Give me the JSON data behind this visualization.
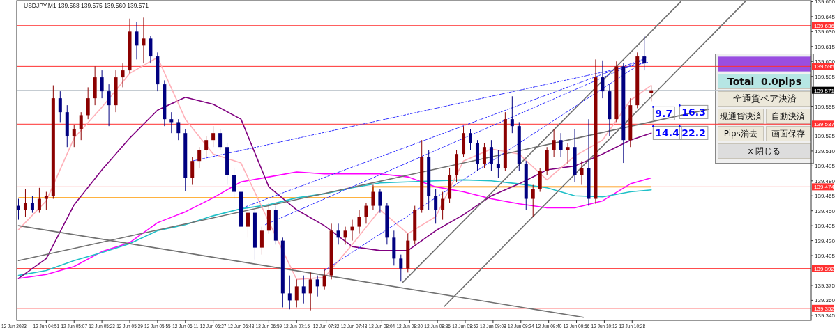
{
  "chart_data": [
    {
      "type": "candlestick",
      "title": "USDJPY,M1  139.568 139.575 139.560 139.571",
      "x": [
        "2023-06-12T04:35",
        "2023-06-12T04:39",
        "2023-06-12T04:43",
        "2023-06-12T04:47",
        "2023-06-12T04:51",
        "2023-06-12T04:55",
        "2023-06-12T04:59",
        "2023-06-12T05:03",
        "2023-06-12T05:07",
        "2023-06-12T05:11",
        "2023-06-12T05:15",
        "2023-06-12T05:19",
        "2023-06-12T05:23",
        "2023-06-12T05:27",
        "2023-06-12T05:31",
        "2023-06-12T05:35",
        "2023-06-12T05:39",
        "2023-06-12T05:43",
        "2023-06-12T05:47",
        "2023-06-12T05:51",
        "2023-06-12T05:55",
        "2023-06-12T05:59",
        "2023-06-12T06:03",
        "2023-06-12T06:07",
        "2023-06-12T06:11",
        "2023-06-12T06:15",
        "2023-06-12T06:19",
        "2023-06-12T06:23",
        "2023-06-12T06:27",
        "2023-06-12T06:31",
        "2023-06-12T06:35",
        "2023-06-12T06:39",
        "2023-06-12T06:43",
        "2023-06-12T06:47",
        "2023-06-12T06:51",
        "2023-06-12T06:55",
        "2023-06-12T06:59",
        "2023-06-12T07:03",
        "2023-06-12T07:07",
        "2023-06-12T07:11",
        "2023-06-12T07:15",
        "2023-06-12T07:19",
        "2023-06-12T07:23",
        "2023-06-12T07:27",
        "2023-06-12T07:31",
        "2023-06-12T07:35",
        "2023-06-12T07:39",
        "2023-06-12T07:43",
        "2023-06-12T07:47",
        "2023-06-12T07:51",
        "2023-06-12T07:55",
        "2023-06-12T07:59",
        "2023-06-12T08:03",
        "2023-06-12T08:07",
        "2023-06-12T08:11",
        "2023-06-12T08:15",
        "2023-06-12T08:19",
        "2023-06-12T08:23",
        "2023-06-12T08:27",
        "2023-06-12T08:31",
        "2023-06-12T08:35",
        "2023-06-12T08:39",
        "2023-06-12T08:43",
        "2023-06-12T08:47",
        "2023-06-12T08:51",
        "2023-06-12T08:55",
        "2023-06-12T08:59",
        "2023-06-12T09:03",
        "2023-06-12T09:07",
        "2023-06-12T09:11",
        "2023-06-12T09:15",
        "2023-06-12T09:19",
        "2023-06-12T09:23",
        "2023-06-12T09:27",
        "2023-06-12T09:31",
        "2023-06-12T09:35",
        "2023-06-12T09:39",
        "2023-06-12T09:43",
        "2023-06-12T09:47",
        "2023-06-12T09:51",
        "2023-06-12T09:55",
        "2023-06-12T09:59",
        "2023-06-12T10:03",
        "2023-06-12T10:07",
        "2023-06-12T10:11",
        "2023-06-12T10:15",
        "2023-06-12T10:19",
        "2023-06-12T10:23",
        "2023-06-12T10:27",
        "2023-06-12T10:31",
        "2023-06-12T10:35",
        "2023-06-12T10:39"
      ],
      "ohlc": [
        [
          139.455,
          139.462,
          139.441,
          139.451
        ],
        [
          139.451,
          139.472,
          139.444,
          139.458
        ],
        [
          139.458,
          139.465,
          139.448,
          139.451
        ],
        [
          139.451,
          139.473,
          139.448,
          139.462
        ],
        [
          139.462,
          139.469,
          139.451,
          139.465
        ],
        [
          139.465,
          139.576,
          139.462,
          139.563
        ],
        [
          139.563,
          139.57,
          139.539,
          139.549
        ],
        [
          139.549,
          139.556,
          139.514,
          139.525
        ],
        [
          139.525,
          139.536,
          139.514,
          139.532
        ],
        [
          139.532,
          139.549,
          139.521,
          139.546
        ],
        [
          139.546,
          139.574,
          139.542,
          139.563
        ],
        [
          139.563,
          139.595,
          139.556,
          139.584
        ],
        [
          139.584,
          139.591,
          139.563,
          139.57
        ],
        [
          139.57,
          139.577,
          139.535,
          139.556
        ],
        [
          139.556,
          139.591,
          139.549,
          139.584
        ],
        [
          139.584,
          139.598,
          139.574,
          139.591
        ],
        [
          139.591,
          139.643,
          139.588,
          139.63
        ],
        [
          139.63,
          139.64,
          139.602,
          139.616
        ],
        [
          139.616,
          139.644,
          139.598,
          139.623
        ],
        [
          139.623,
          139.626,
          139.598,
          139.605
        ],
        [
          139.605,
          139.609,
          139.57,
          139.577
        ],
        [
          139.577,
          139.581,
          139.535,
          139.542
        ],
        [
          139.542,
          139.549,
          139.528,
          139.539
        ],
        [
          139.539,
          139.542,
          139.521,
          139.528
        ],
        [
          139.528,
          139.532,
          139.47,
          139.483
        ],
        [
          139.483,
          139.504,
          139.476,
          139.5
        ],
        [
          139.5,
          139.514,
          139.493,
          139.511
        ],
        [
          139.511,
          139.525,
          139.504,
          139.521
        ],
        [
          139.521,
          139.535,
          139.514,
          139.528
        ],
        [
          139.528,
          139.532,
          139.511,
          139.514
        ],
        [
          139.514,
          139.518,
          139.476,
          139.486
        ],
        [
          139.486,
          139.493,
          139.462,
          139.469
        ],
        [
          139.469,
          139.505,
          139.42,
          139.434
        ],
        [
          139.434,
          139.455,
          139.423,
          139.448
        ],
        [
          139.448,
          139.451,
          139.401,
          139.413
        ],
        [
          139.413,
          139.434,
          139.406,
          139.43
        ],
        [
          139.43,
          139.458,
          139.427,
          139.451
        ],
        [
          139.451,
          139.455,
          139.416,
          139.42
        ],
        [
          139.42,
          139.423,
          139.353,
          139.367
        ],
        [
          139.367,
          139.385,
          139.351,
          139.36
        ],
        [
          139.36,
          139.381,
          139.353,
          139.374
        ],
        [
          139.374,
          139.385,
          139.357,
          139.367
        ],
        [
          139.367,
          139.388,
          139.35,
          139.381
        ],
        [
          139.381,
          139.385,
          139.364,
          139.374
        ],
        [
          139.374,
          139.392,
          139.371,
          139.385
        ],
        [
          139.385,
          139.437,
          139.381,
          139.43
        ],
        [
          139.43,
          139.437,
          139.416,
          139.423
        ],
        [
          139.423,
          139.434,
          139.416,
          139.43
        ],
        [
          139.43,
          139.441,
          139.42,
          139.434
        ],
        [
          139.434,
          139.451,
          139.427,
          139.444
        ],
        [
          139.444,
          139.458,
          139.437,
          139.455
        ],
        [
          139.455,
          139.476,
          139.451,
          139.469
        ],
        [
          139.469,
          139.472,
          139.448,
          139.455
        ],
        [
          139.455,
          139.458,
          139.416,
          139.423
        ],
        [
          139.423,
          139.43,
          139.395,
          139.402
        ],
        [
          139.402,
          139.406,
          139.379,
          139.392
        ],
        [
          139.392,
          139.427,
          139.388,
          139.42
        ],
        [
          139.42,
          139.455,
          139.416,
          139.451
        ],
        [
          139.451,
          139.521,
          139.448,
          139.504
        ],
        [
          139.504,
          139.511,
          139.451,
          139.465
        ],
        [
          139.465,
          139.472,
          139.437,
          139.451
        ],
        [
          139.451,
          139.469,
          139.441,
          139.462
        ],
        [
          139.462,
          139.493,
          139.458,
          139.486
        ],
        [
          139.486,
          139.511,
          139.479,
          139.507
        ],
        [
          139.507,
          139.535,
          139.504,
          139.528
        ],
        [
          139.528,
          139.532,
          139.511,
          139.518
        ],
        [
          139.518,
          139.521,
          139.49,
          139.497
        ],
        [
          139.497,
          139.518,
          139.493,
          139.514
        ],
        [
          139.514,
          139.521,
          139.49,
          139.497
        ],
        [
          139.497,
          139.511,
          139.483,
          139.493
        ],
        [
          139.493,
          139.549,
          139.49,
          139.542
        ],
        [
          139.542,
          139.565,
          139.528,
          139.535
        ],
        [
          139.535,
          139.539,
          139.49,
          139.497
        ],
        [
          139.497,
          139.5,
          139.451,
          139.462
        ],
        [
          139.462,
          139.476,
          139.444,
          139.472
        ],
        [
          139.472,
          139.493,
          139.469,
          139.49
        ],
        [
          139.49,
          139.514,
          139.486,
          139.511
        ],
        [
          139.511,
          139.532,
          139.504,
          139.521
        ],
        [
          139.521,
          139.528,
          139.504,
          139.511
        ],
        [
          139.511,
          139.518,
          139.497,
          139.514
        ],
        [
          139.514,
          139.532,
          139.479,
          139.486
        ],
        [
          139.486,
          139.5,
          139.476,
          139.493
        ],
        [
          139.493,
          139.542,
          139.455,
          139.462
        ],
        [
          139.462,
          139.602,
          139.457,
          139.584
        ],
        [
          139.584,
          139.601,
          139.563,
          139.57
        ],
        [
          139.57,
          139.577,
          139.525,
          139.542
        ],
        [
          139.542,
          139.6,
          139.539,
          139.595
        ],
        [
          139.595,
          139.598,
          139.498,
          139.521
        ],
        [
          139.521,
          139.563,
          139.514,
          139.556
        ],
        [
          139.556,
          139.609,
          139.553,
          139.605
        ],
        [
          139.605,
          139.626,
          139.591,
          139.598
        ],
        [
          139.568,
          139.575,
          139.56,
          139.571
        ]
      ],
      "colors": [
        "#000080",
        "#8b0000",
        "#000080",
        "#8b0000",
        "#8b0000",
        "#8b0000",
        "#000080",
        "#000080",
        "#8b0000",
        "#8b0000",
        "#8b0000",
        "#8b0000",
        "#000080",
        "#000080",
        "#8b0000",
        "#8b0000",
        "#8b0000",
        "#000080",
        "#8b0000",
        "#000080",
        "#000080",
        "#000080",
        "#000080",
        "#000080",
        "#000080",
        "#8b0000",
        "#8b0000",
        "#8b0000",
        "#8b0000",
        "#000080",
        "#000080",
        "#000080",
        "#000080",
        "#8b0000",
        "#000080",
        "#8b0000",
        "#8b0000",
        "#000080",
        "#000080",
        "#000080",
        "#8b0000",
        "#000080",
        "#8b0000",
        "#000080",
        "#8b0000",
        "#8b0000",
        "#000080",
        "#8b0000",
        "#8b0000",
        "#8b0000",
        "#8b0000",
        "#8b0000",
        "#000080",
        "#000080",
        "#000080",
        "#000080",
        "#8b0000",
        "#8b0000",
        "#8b0000",
        "#000080",
        "#000080",
        "#8b0000",
        "#8b0000",
        "#8b0000",
        "#8b0000",
        "#000080",
        "#000080",
        "#8b0000",
        "#000080",
        "#000080",
        "#8b0000",
        "#000080",
        "#000080",
        "#000080",
        "#8b0000",
        "#8b0000",
        "#8b0000",
        "#8b0000",
        "#000080",
        "#8b0000",
        "#000080",
        "#8b0000",
        "#000080",
        "#8b0000",
        "#000080",
        "#000080",
        "#8b0000",
        "#000080",
        "#8b0000",
        "#8b0000",
        "#000080",
        "#8b0000"
      ],
      "xlim": [
        "2023-06-12T04:34",
        "2023-06-12T12:11"
      ],
      "xticks": [
        {
          "value": "2023-06-12T04:51",
          "label": "12 Jun 04:51"
        },
        {
          "value": "2023-06-12T05:07",
          "label": "12 Jun 05:07"
        },
        {
          "value": "2023-06-12T05:23",
          "label": "12 Jun 05:23"
        },
        {
          "value": "2023-06-12T05:39",
          "label": "12 Jun 05:39"
        },
        {
          "value": "2023-06-12T05:55",
          "label": "12 Jun 05:55"
        },
        {
          "value": "2023-06-12T06:11",
          "label": "12 Jun 06:11"
        },
        {
          "value": "2023-06-12T06:27",
          "label": "12 Jun 06:27"
        },
        {
          "value": "2023-06-12T06:43",
          "label": "12 Jun 06:43"
        },
        {
          "value": "2023-06-12T06:59",
          "label": "12 Jun 06:59"
        },
        {
          "value": "2023-06-12T07:15",
          "label": "12 Jun 07:15"
        },
        {
          "value": "2023-06-12T07:32",
          "label": "12 Jun 07:32"
        },
        {
          "value": "2023-06-12T07:48",
          "label": "12 Jun 07:48"
        },
        {
          "value": "2023-06-12T08:04",
          "label": "12 Jun 08:04"
        },
        {
          "value": "2023-06-12T08:20",
          "label": "12 Jun 08:20"
        },
        {
          "value": "2023-06-12T08:36",
          "label": "12 Jun 08:36"
        },
        {
          "value": "2023-06-12T08:52",
          "label": "12 Jun 08:52"
        },
        {
          "value": "2023-06-12T09:08",
          "label": "12 Jun 09:08"
        },
        {
          "value": "2023-06-12T09:24",
          "label": "12 Jun 09:24"
        },
        {
          "value": "2023-06-12T09:40",
          "label": "12 Jun 09:40"
        },
        {
          "value": "2023-06-12T09:56",
          "label": "12 Jun 09:56"
        },
        {
          "value": "2023-06-12T10:12",
          "label": "12 Jun 10:12"
        },
        {
          "value": "2023-06-12T10:28",
          "label": "12 Jun 10:28"
        }
      ],
      "ylim": [
        139.34,
        139.661
      ],
      "yticks": [
        {
          "value": 139.66,
          "label": "139.660"
        },
        {
          "value": 139.645,
          "label": "139.645"
        },
        {
          "value": 139.63,
          "label": "139.630"
        },
        {
          "value": 139.615,
          "label": "139.615"
        },
        {
          "value": 139.6,
          "label": "139.600"
        },
        {
          "value": 139.585,
          "label": "139.585"
        },
        {
          "value": 139.555,
          "label": "139.555"
        },
        {
          "value": 139.525,
          "label": "139.525"
        },
        {
          "value": 139.51,
          "label": "139.510"
        },
        {
          "value": 139.495,
          "label": "139.495"
        },
        {
          "value": 139.48,
          "label": "139.480"
        },
        {
          "value": 139.465,
          "label": "139.465"
        },
        {
          "value": 139.45,
          "label": "139.450"
        },
        {
          "value": 139.435,
          "label": "139.435"
        },
        {
          "value": 139.42,
          "label": "139.420"
        },
        {
          "value": 139.405,
          "label": "139.405"
        },
        {
          "value": 139.375,
          "label": "139.375"
        },
        {
          "value": 139.36,
          "label": "139.360"
        },
        {
          "value": 139.345,
          "label": "139.345"
        }
      ],
      "ref_lines": [
        {
          "axis": "y",
          "value": 139.636,
          "label": "139.636",
          "color": "#ff3030"
        },
        {
          "axis": "y",
          "value": 139.595,
          "label": "139.595",
          "color": "#ff3030"
        },
        {
          "axis": "y",
          "value": 139.571,
          "label": "139.571",
          "color": "#b8c0c8"
        },
        {
          "axis": "y",
          "value": 139.537,
          "label": "139.537",
          "color": "#ff3030"
        },
        {
          "axis": "y",
          "value": 139.474,
          "label": "139.474",
          "color": "#ff3030"
        },
        {
          "axis": "y",
          "value": 139.392,
          "label": "139.392",
          "color": "#ff3030"
        },
        {
          "axis": "y",
          "value": 139.352,
          "label": "139.352",
          "color": "#ff3030"
        }
      ],
      "series": [
        {
          "type": "step",
          "color": "#ff9900",
          "x": [
            "2023-06-12T04:35",
            "2023-06-12T07:59",
            "2023-06-12T10:39"
          ],
          "values": [
            139.463,
            139.474,
            139.474
          ]
        },
        {
          "type": "line",
          "color": "#ff00ff",
          "x": [
            "2023-06-12T04:35",
            "2023-06-12T04:51",
            "2023-06-12T05:07",
            "2023-06-12T05:23",
            "2023-06-12T05:39",
            "2023-06-12T05:55",
            "2023-06-12T06:11",
            "2023-06-12T06:27",
            "2023-06-12T06:43",
            "2023-06-12T06:59",
            "2023-06-12T07:15",
            "2023-06-12T07:31",
            "2023-06-12T07:47",
            "2023-06-12T08:03",
            "2023-06-12T08:19",
            "2023-06-12T08:35",
            "2023-06-12T08:51",
            "2023-06-12T09:07",
            "2023-06-12T09:23",
            "2023-06-12T09:39",
            "2023-06-12T09:55",
            "2023-06-12T10:11",
            "2023-06-12T10:27",
            "2023-06-12T10:39"
          ],
          "values": [
            139.382,
            139.386,
            139.394,
            139.409,
            139.418,
            139.438,
            139.449,
            139.463,
            139.479,
            139.484,
            139.489,
            139.487,
            139.487,
            139.487,
            139.484,
            139.474,
            139.469,
            139.462,
            139.457,
            139.453,
            139.453,
            139.46,
            139.477,
            139.483
          ]
        },
        {
          "type": "line",
          "color": "#20c0c8",
          "x": [
            "2023-06-12T04:35",
            "2023-06-12T04:51",
            "2023-06-12T05:07",
            "2023-06-12T05:23",
            "2023-06-12T05:39",
            "2023-06-12T05:55",
            "2023-06-12T06:11",
            "2023-06-12T06:27",
            "2023-06-12T06:43",
            "2023-06-12T06:59",
            "2023-06-12T07:15",
            "2023-06-12T07:31",
            "2023-06-12T07:47",
            "2023-06-12T08:03",
            "2023-06-12T08:19",
            "2023-06-12T08:35",
            "2023-06-12T08:51",
            "2023-06-12T09:07",
            "2023-06-12T09:23",
            "2023-06-12T09:39",
            "2023-06-12T09:55",
            "2023-06-12T10:11",
            "2023-06-12T10:27",
            "2023-06-12T10:39"
          ],
          "values": [
            139.385,
            139.39,
            139.4,
            139.408,
            139.417,
            139.43,
            139.436,
            139.445,
            139.452,
            139.456,
            139.463,
            139.467,
            139.473,
            139.478,
            139.479,
            139.48,
            139.481,
            139.48,
            139.477,
            139.473,
            139.465,
            139.464,
            139.469,
            139.471
          ]
        },
        {
          "type": "line",
          "color": "#800080",
          "x": [
            "2023-06-12T04:35",
            "2023-06-12T04:51",
            "2023-06-12T05:07",
            "2023-06-12T05:23",
            "2023-06-12T05:39",
            "2023-06-12T05:55",
            "2023-06-12T06:11",
            "2023-06-12T06:27",
            "2023-06-12T06:43",
            "2023-06-12T06:59",
            "2023-06-12T07:15",
            "2023-06-12T07:31",
            "2023-06-12T07:47",
            "2023-06-12T08:03",
            "2023-06-12T08:19",
            "2023-06-12T08:35",
            "2023-06-12T08:51",
            "2023-06-12T09:07",
            "2023-06-12T09:23",
            "2023-06-12T09:39",
            "2023-06-12T09:55",
            "2023-06-12T10:11",
            "2023-06-12T10:27",
            "2023-06-12T10:39"
          ],
          "values": [
            139.382,
            139.402,
            139.456,
            139.491,
            139.523,
            139.551,
            139.564,
            139.557,
            139.542,
            139.474,
            139.451,
            139.435,
            139.414,
            139.41,
            139.41,
            139.43,
            139.446,
            139.465,
            139.477,
            139.491,
            139.495,
            139.507,
            139.521,
            139.528
          ]
        },
        {
          "type": "line",
          "color": "#ffb0b8",
          "x": [
            "2023-06-12T04:35",
            "2023-06-12T04:51",
            "2023-06-12T05:07",
            "2023-06-12T05:23",
            "2023-06-12T05:39",
            "2023-06-12T05:55",
            "2023-06-12T06:11",
            "2023-06-12T06:27",
            "2023-06-12T06:43",
            "2023-06-12T06:59",
            "2023-06-12T07:15",
            "2023-06-12T07:31",
            "2023-06-12T07:47",
            "2023-06-12T08:03",
            "2023-06-12T08:19",
            "2023-06-12T08:35",
            "2023-06-12T08:51",
            "2023-06-12T09:07",
            "2023-06-12T09:23",
            "2023-06-12T09:39",
            "2023-06-12T09:55",
            "2023-06-12T10:11",
            "2023-06-12T10:27",
            "2023-06-12T10:39"
          ],
          "values": [
            139.431,
            139.46,
            139.523,
            139.554,
            139.588,
            139.604,
            139.542,
            139.507,
            139.498,
            139.439,
            139.381,
            139.383,
            139.416,
            139.451,
            139.427,
            139.444,
            139.5,
            139.512,
            139.507,
            139.481,
            139.505,
            139.521,
            139.561,
            139.576
          ]
        },
        {
          "type": "line",
          "color": "#707070",
          "x": [
            "2023-06-12T04:35",
            "2023-06-12T10:00"
          ],
          "values": [
            139.435,
            139.343
          ]
        },
        {
          "type": "line",
          "color": "#707070",
          "x": [
            "2023-06-12T04:35",
            "2023-06-12T11:12"
          ],
          "values": [
            139.4,
            139.552
          ]
        },
        {
          "type": "line",
          "color": "#707070",
          "x": [
            "2023-06-12T08:16",
            "2023-06-12T10:56"
          ],
          "values": [
            139.378,
            139.66
          ]
        },
        {
          "type": "line",
          "color": "#707070",
          "x": [
            "2023-06-12T08:40",
            "2023-06-12T11:33"
          ],
          "values": [
            139.354,
            139.66
          ]
        },
        {
          "type": "line",
          "color": "#3333ff",
          "line_style": "dashed",
          "x": [
            "2023-06-12T06:15",
            "2023-06-12T10:37"
          ],
          "values": [
            139.5,
            139.599
          ]
        },
        {
          "type": "line",
          "color": "#3333ff",
          "line_style": "dashed",
          "x": [
            "2023-06-12T06:44",
            "2023-06-12T10:37"
          ],
          "values": [
            139.453,
            139.604
          ]
        },
        {
          "type": "line",
          "color": "#3333ff",
          "line_style": "dashed",
          "x": [
            "2023-06-12T06:57",
            "2023-06-12T10:35"
          ],
          "values": [
            139.436,
            139.602
          ]
        },
        {
          "type": "line",
          "color": "#3333ff",
          "line_style": "dashed",
          "x": [
            "2023-06-12T07:31",
            "2023-06-12T10:34"
          ],
          "values": [
            139.39,
            139.599
          ]
        }
      ],
      "annotations": [
        "12 Jun 2023",
        "9.7",
        "16.3",
        "14.4",
        "22.2"
      ]
    },
    {
      "type": "other",
      "annotations": [
        "Total  0.0pips",
        "全通貨ペア決済",
        "現通貨決済",
        "自動決済",
        "Pips消去",
        "画面保存",
        "x 閉じる"
      ]
    }
  ]
}
